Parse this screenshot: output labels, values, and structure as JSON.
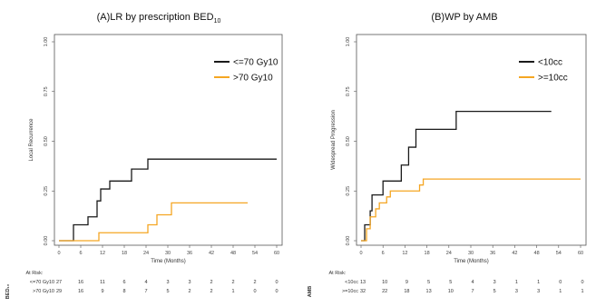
{
  "chart_data": [
    {
      "type": "line",
      "step": true,
      "title": "(A)LR by prescription BED",
      "title_subscript": "10",
      "xlabel": "Time (Months)",
      "ylabel": "Local Recurrence",
      "xlim": [
        0,
        60
      ],
      "ylim": [
        0,
        1
      ],
      "xticks": [
        "0",
        "6",
        "12",
        "18",
        "24",
        "30",
        "36",
        "42",
        "48",
        "54",
        "60"
      ],
      "yticks": [
        "0.00",
        "0.25",
        "0.50",
        "0.75",
        "1.00"
      ],
      "legend_position": "top-right",
      "series": [
        {
          "name": "<=70 Gy10",
          "color": "#1a1a1a",
          "points": [
            [
              0,
              0
            ],
            [
              4,
              0
            ],
            [
              4,
              0.08
            ],
            [
              8,
              0.08
            ],
            [
              8,
              0.12
            ],
            [
              10.5,
              0.12
            ],
            [
              10.5,
              0.2
            ],
            [
              11.5,
              0.2
            ],
            [
              11.5,
              0.26
            ],
            [
              14,
              0.26
            ],
            [
              14,
              0.3
            ],
            [
              20,
              0.3
            ],
            [
              20,
              0.36
            ],
            [
              24.5,
              0.36
            ],
            [
              24.5,
              0.41
            ],
            [
              60,
              0.41
            ]
          ]
        },
        {
          "name": ">70 Gy10",
          "color": "#f5a623",
          "points": [
            [
              0,
              0
            ],
            [
              11,
              0
            ],
            [
              11,
              0.04
            ],
            [
              24.5,
              0.04
            ],
            [
              24.5,
              0.08
            ],
            [
              27,
              0.08
            ],
            [
              27,
              0.13
            ],
            [
              31,
              0.13
            ],
            [
              31,
              0.19
            ],
            [
              52,
              0.19
            ]
          ]
        }
      ],
      "at_risk": {
        "label": "At Risk:",
        "group_label": "BED₁₀",
        "rows": [
          {
            "name": "<=70 Gy10",
            "color": "#333333",
            "values": [
              "27",
              "16",
              "11",
              "6",
              "4",
              "3",
              "3",
              "2",
              "2",
              "2",
              "0"
            ]
          },
          {
            "name": ">70 Gy10",
            "color": "#f5a623",
            "values": [
              "29",
              "16",
              "9",
              "8",
              "7",
              "5",
              "2",
              "2",
              "1",
              "0",
              "0"
            ]
          }
        ]
      }
    },
    {
      "type": "line",
      "step": true,
      "title": "(B)WP by AMB",
      "xlabel": "Time (Months)",
      "ylabel": "Widespread Progression",
      "xlim": [
        0,
        60
      ],
      "ylim": [
        0,
        1
      ],
      "xticks": [
        "0",
        "6",
        "12",
        "18",
        "24",
        "30",
        "36",
        "42",
        "48",
        "54",
        "60"
      ],
      "yticks": [
        "0.00",
        "0.25",
        "0.50",
        "0.75",
        "1.00"
      ],
      "legend_position": "top-right",
      "series": [
        {
          "name": "<10cc",
          "color": "#1a1a1a",
          "points": [
            [
              0,
              0
            ],
            [
              1,
              0
            ],
            [
              1,
              0.08
            ],
            [
              2.5,
              0.08
            ],
            [
              2.5,
              0.15
            ],
            [
              3,
              0.15
            ],
            [
              3,
              0.23
            ],
            [
              6,
              0.23
            ],
            [
              6,
              0.3
            ],
            [
              11,
              0.3
            ],
            [
              11,
              0.38
            ],
            [
              13,
              0.38
            ],
            [
              13,
              0.47
            ],
            [
              15,
              0.47
            ],
            [
              15,
              0.56
            ],
            [
              26,
              0.56
            ],
            [
              26,
              0.65
            ],
            [
              52,
              0.65
            ]
          ]
        },
        {
          "name": ">=10cc",
          "color": "#f5a623",
          "points": [
            [
              0,
              0
            ],
            [
              1.5,
              0
            ],
            [
              1.5,
              0.06
            ],
            [
              2.5,
              0.06
            ],
            [
              2.5,
              0.12
            ],
            [
              4,
              0.12
            ],
            [
              4,
              0.16
            ],
            [
              5,
              0.16
            ],
            [
              5,
              0.19
            ],
            [
              7,
              0.19
            ],
            [
              7,
              0.22
            ],
            [
              8,
              0.22
            ],
            [
              8,
              0.25
            ],
            [
              16,
              0.25
            ],
            [
              16,
              0.28
            ],
            [
              17,
              0.28
            ],
            [
              17,
              0.31
            ],
            [
              60,
              0.31
            ]
          ]
        }
      ],
      "at_risk": {
        "label": "At Risk:",
        "group_label": "AMB",
        "rows": [
          {
            "name": "<10cc",
            "color": "#333333",
            "values": [
              "13",
              "10",
              "9",
              "5",
              "5",
              "4",
              "3",
              "1",
              "1",
              "0",
              "0"
            ]
          },
          {
            "name": ">=10cc",
            "color": "#f5a623",
            "values": [
              "32",
              "22",
              "18",
              "13",
              "10",
              "7",
              "5",
              "3",
              "3",
              "1",
              "1"
            ]
          }
        ]
      }
    }
  ]
}
